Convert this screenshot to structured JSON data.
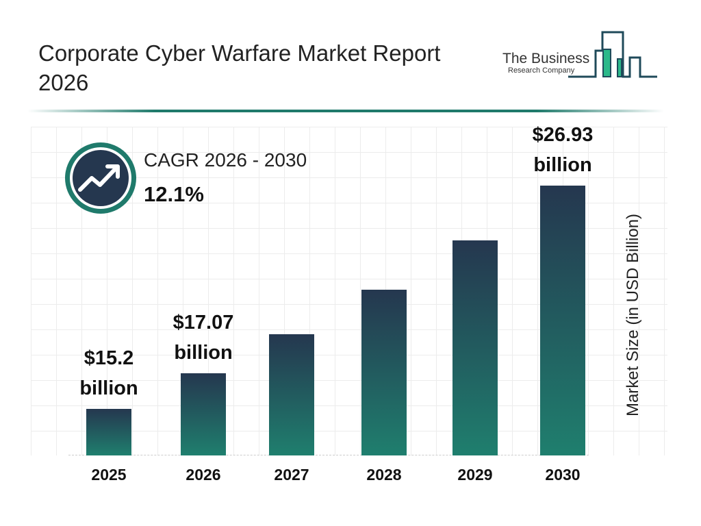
{
  "header": {
    "title": "Corporate Cyber Warfare Market Report 2026",
    "logo_line1": "The Business",
    "logo_line2": "Research Company"
  },
  "cagr": {
    "label": "CAGR 2026 - 2030",
    "value": "12.1%",
    "icon": "trending-up-icon"
  },
  "colors": {
    "bar_top": "#25374f",
    "bar_bottom": "#1f7f6e",
    "accent": "#1f7a6b"
  },
  "chart_data": {
    "type": "bar",
    "categories": [
      "2025",
      "2026",
      "2027",
      "2028",
      "2029",
      "2030"
    ],
    "values": [
      15.2,
      17.07,
      19.13,
      21.45,
      24.04,
      26.93
    ],
    "data_labels": [
      "$15.2 billion",
      "$17.07 billion",
      "",
      "",
      "",
      "$26.93 billion"
    ],
    "ylabel": "Market Size (in USD Billion)",
    "xlabel": "",
    "grid": true
  }
}
